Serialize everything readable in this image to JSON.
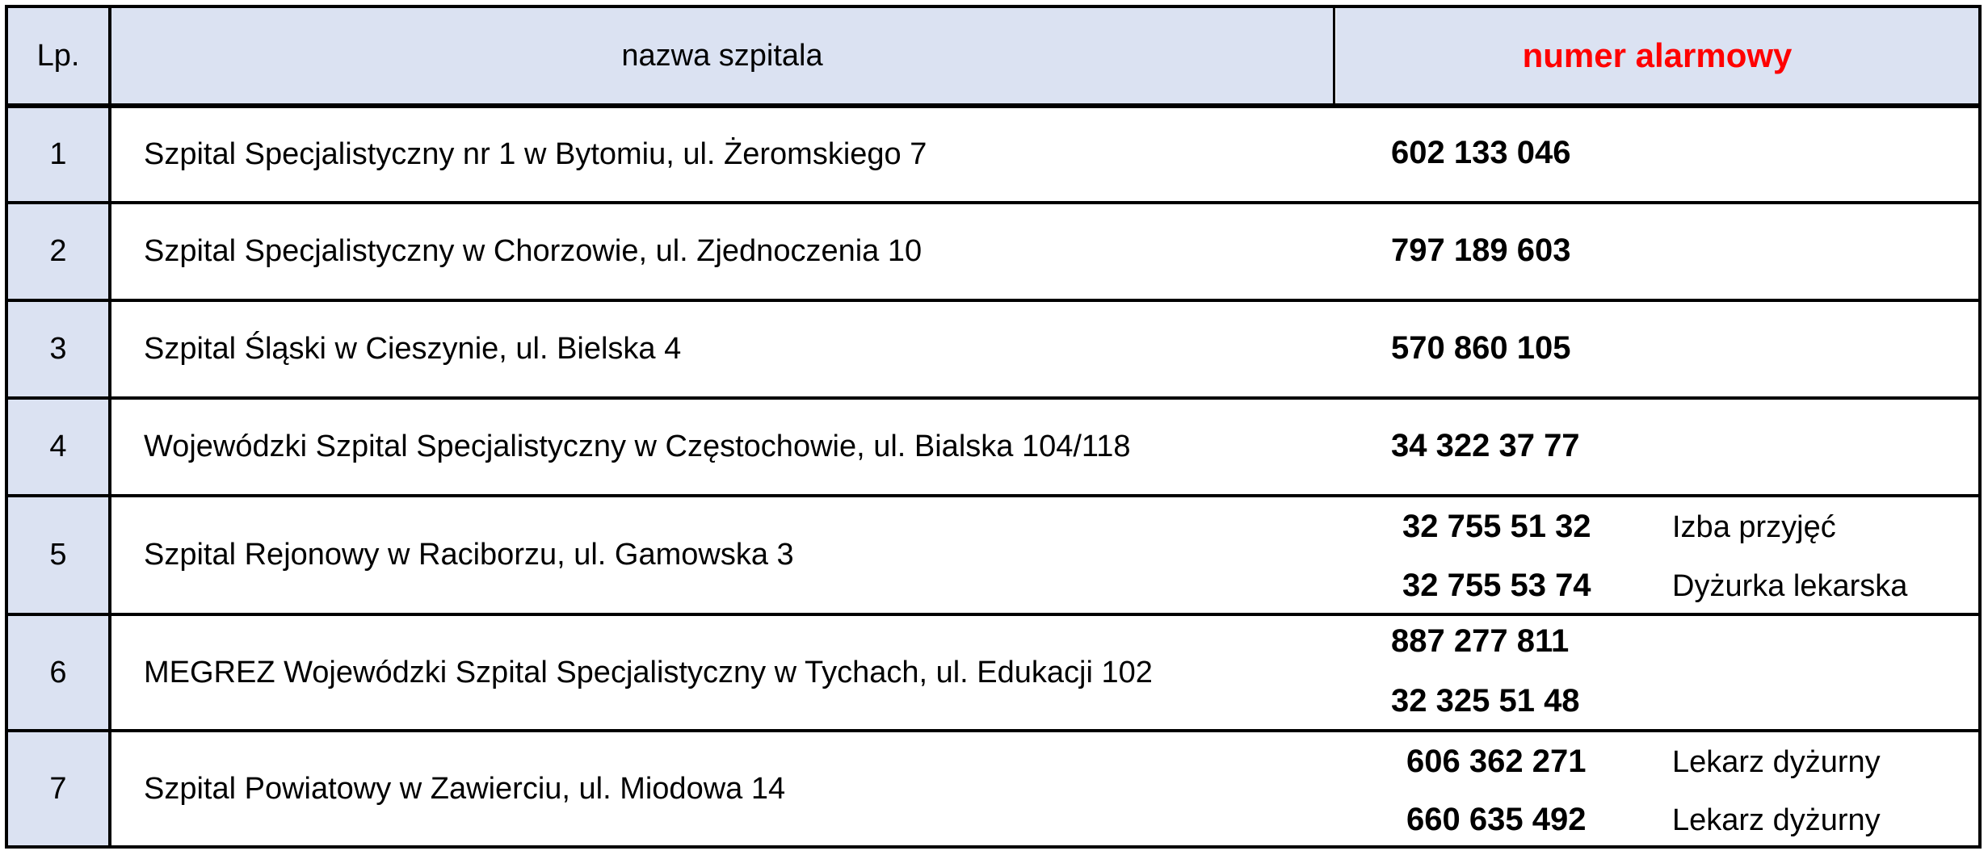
{
  "header": {
    "lp": "Lp.",
    "name": "nazwa szpitala",
    "number": "numer alarmowy",
    "number_color": "#ff0000"
  },
  "rows": [
    {
      "lp": "1",
      "name": "Szpital Specjalistyczny nr 1 w Bytomiu, ul. Żeromskiego 7",
      "numbers": [
        {
          "number": "602 133 046",
          "note": ""
        }
      ]
    },
    {
      "lp": "2",
      "name": "Szpital Specjalistyczny w Chorzowie, ul. Zjednoczenia 10",
      "numbers": [
        {
          "number": "797 189 603",
          "note": ""
        }
      ]
    },
    {
      "lp": "3",
      "name": "Szpital Śląski w Cieszynie, ul. Bielska 4",
      "numbers": [
        {
          "number": "570 860 105",
          "note": ""
        }
      ]
    },
    {
      "lp": "4",
      "name": "Wojewódzki Szpital Specjalistyczny w Częstochowie, ul. Bialska 104/118",
      "numbers": [
        {
          "number": "34 322 37 77",
          "note": ""
        }
      ]
    },
    {
      "lp": "5",
      "name": "Szpital Rejonowy w Raciborzu, ul. Gamowska 3",
      "numbers": [
        {
          "number": "32 755 51 32",
          "note": "Izba przyjęć"
        },
        {
          "number": "32 755 53 74",
          "note": "Dyżurka lekarska"
        }
      ]
    },
    {
      "lp": "6",
      "name": "MEGREZ Wojewódzki Szpital Specjalistyczny w Tychach, ul. Edukacji 102",
      "numbers": [
        {
          "number": "887 277 811",
          "note": ""
        },
        {
          "number": "32 325 51 48",
          "note": ""
        }
      ]
    },
    {
      "lp": "7",
      "name": "Szpital Powiatowy w Zawierciu, ul. Miodowa 14",
      "numbers": [
        {
          "number": "606 362 271",
          "note": "Lekarz dyżurny"
        },
        {
          "number": "660 635 492",
          "note": "Lekarz dyżurny"
        }
      ]
    }
  ]
}
